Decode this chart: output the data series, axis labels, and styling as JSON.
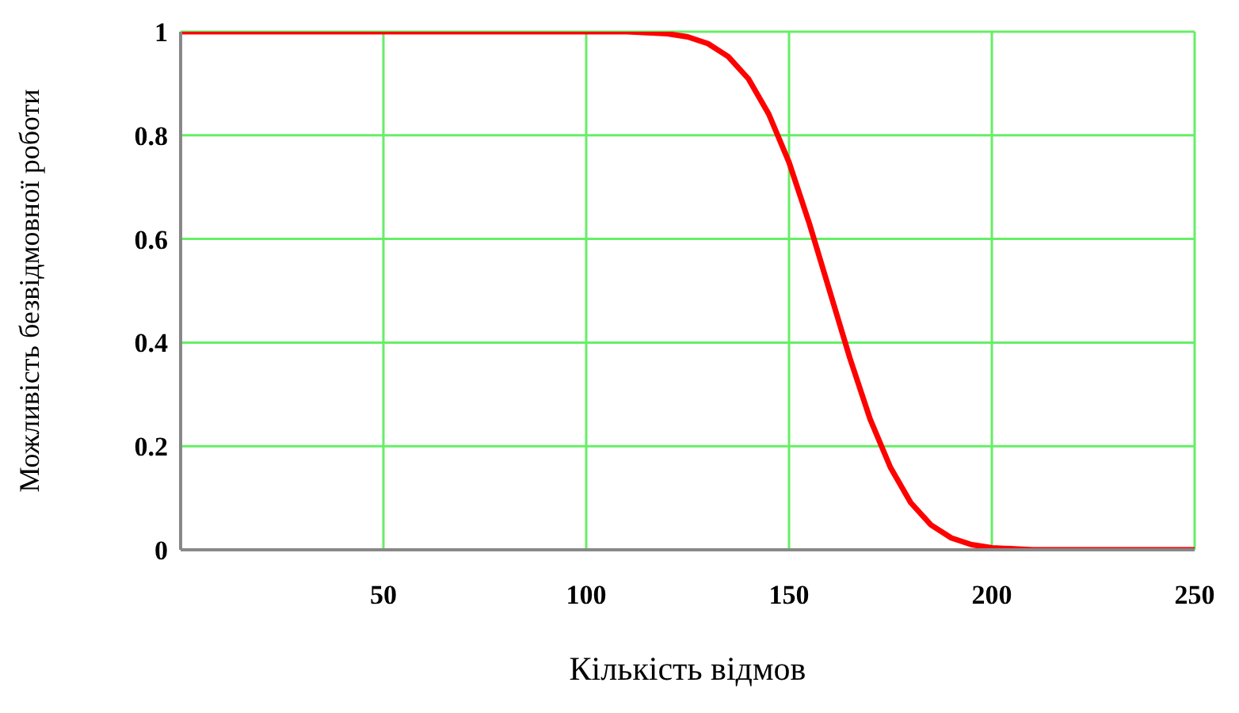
{
  "chart_data": {
    "type": "line",
    "xlabel": "Кількість  відмов",
    "ylabel": "Можливість  безвідмовної роботи",
    "x": [
      0,
      110,
      120,
      125,
      130,
      135,
      140,
      145,
      150,
      155,
      160,
      165,
      170,
      175,
      180,
      185,
      190,
      195,
      200,
      210,
      250
    ],
    "series": [
      {
        "color": "#ff0000",
        "values": [
          1,
          1,
          0.996,
          0.99,
          0.977,
          0.952,
          0.909,
          0.841,
          0.748,
          0.63,
          0.5,
          0.37,
          0.252,
          0.159,
          0.091,
          0.048,
          0.023,
          0.01,
          0.004,
          0,
          0
        ]
      }
    ],
    "xlim": [
      0,
      250
    ],
    "xticks": [
      50,
      100,
      150,
      200,
      250
    ],
    "ylim": [
      0,
      1
    ],
    "yticks": [
      0,
      0.2,
      0.4,
      0.6,
      0.8,
      1
    ],
    "grid": true,
    "legend": false,
    "marker": "none",
    "line_style": "solid"
  }
}
